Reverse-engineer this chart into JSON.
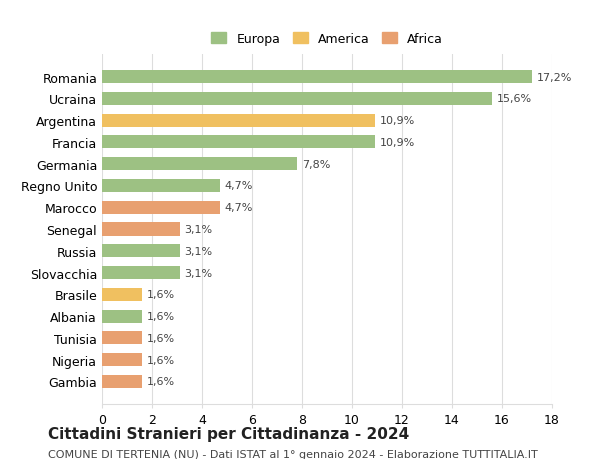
{
  "title": "Cittadini Stranieri per Cittadinanza - 2024",
  "subtitle": "COMUNE DI TERTENIA (NU) - Dati ISTAT al 1° gennaio 2024 - Elaborazione TUTTITALIA.IT",
  "categories": [
    "Romania",
    "Ucraina",
    "Argentina",
    "Francia",
    "Germania",
    "Regno Unito",
    "Marocco",
    "Senegal",
    "Russia",
    "Slovacchia",
    "Brasile",
    "Albania",
    "Tunisia",
    "Nigeria",
    "Gambia"
  ],
  "values": [
    17.2,
    15.6,
    10.9,
    10.9,
    7.8,
    4.7,
    4.7,
    3.1,
    3.1,
    3.1,
    1.6,
    1.6,
    1.6,
    1.6,
    1.6
  ],
  "labels": [
    "17,2%",
    "15,6%",
    "10,9%",
    "10,9%",
    "7,8%",
    "4,7%",
    "4,7%",
    "3,1%",
    "3,1%",
    "3,1%",
    "1,6%",
    "1,6%",
    "1,6%",
    "1,6%",
    "1,6%"
  ],
  "continents": [
    "Europa",
    "Europa",
    "America",
    "Europa",
    "Europa",
    "Europa",
    "Africa",
    "Africa",
    "Europa",
    "Europa",
    "America",
    "Europa",
    "Africa",
    "Africa",
    "Africa"
  ],
  "colors": {
    "Europa": "#9dc183",
    "America": "#f0c060",
    "Africa": "#e8a070"
  },
  "legend_colors": {
    "Europa": "#9dc183",
    "America": "#f0c060",
    "Africa": "#e8a070"
  },
  "xlim": [
    0,
    18
  ],
  "xticks": [
    0,
    2,
    4,
    6,
    8,
    10,
    12,
    14,
    16,
    18
  ],
  "background_color": "#ffffff",
  "grid_color": "#dddddd",
  "bar_height": 0.6,
  "title_fontsize": 11,
  "subtitle_fontsize": 8,
  "label_fontsize": 8,
  "tick_fontsize": 9,
  "legend_fontsize": 9
}
